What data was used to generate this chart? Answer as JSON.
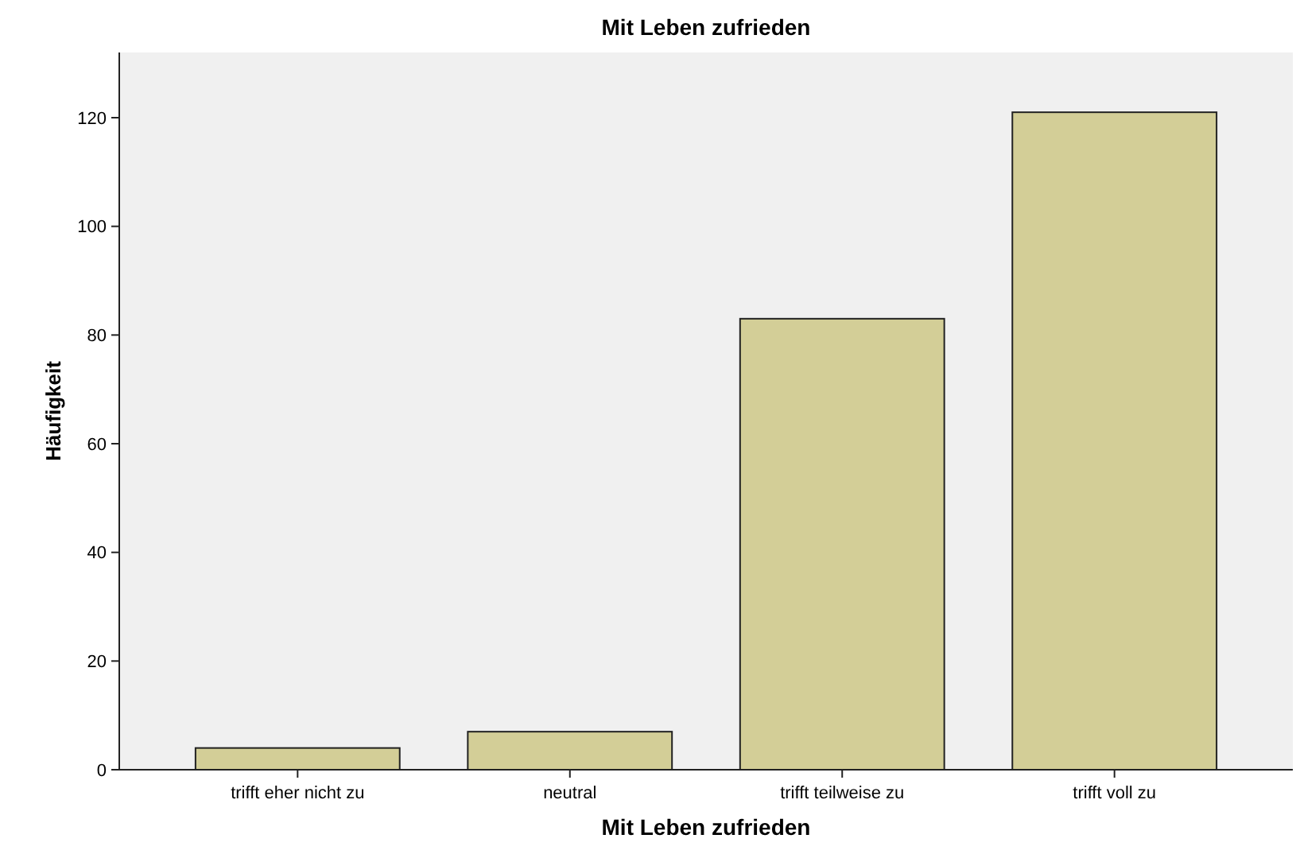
{
  "chart_data": {
    "type": "bar",
    "title": "Mit Leben zufrieden",
    "xlabel": "Mit Leben zufrieden",
    "ylabel": "Häufigkeit",
    "categories": [
      "trifft eher nicht zu",
      "neutral",
      "trifft teilweise zu",
      "trifft voll zu"
    ],
    "values": [
      4,
      7,
      83,
      121
    ],
    "color": "#d3ce97",
    "ylim": [
      0,
      132
    ],
    "yticks": [
      0,
      20,
      40,
      60,
      80,
      100,
      120
    ],
    "grid": false
  }
}
